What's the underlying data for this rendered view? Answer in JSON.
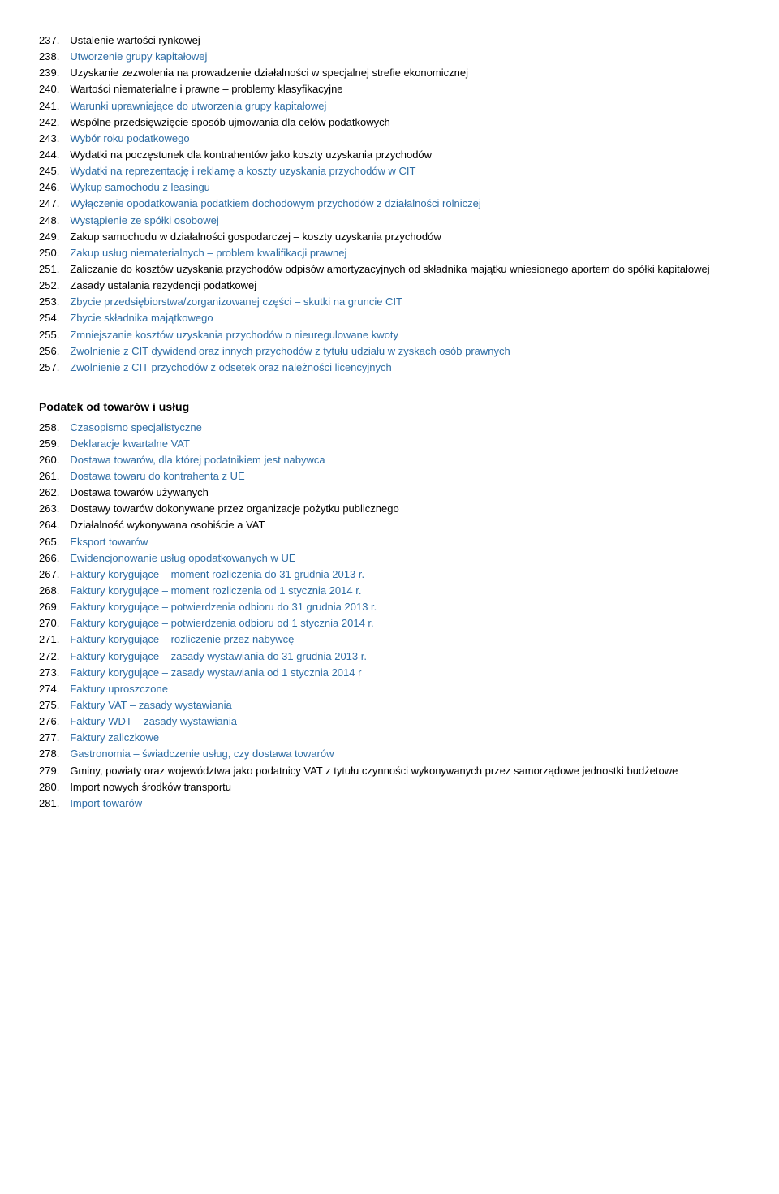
{
  "list1": [
    {
      "n": "237.",
      "t": "Ustalenie wartości rynkowej",
      "c": "black"
    },
    {
      "n": "238.",
      "t": "Utworzenie grupy kapitałowej",
      "c": "blue"
    },
    {
      "n": "239.",
      "t": "Uzyskanie zezwolenia na prowadzenie działalności w specjalnej strefie ekonomicznej",
      "c": "black"
    },
    {
      "n": "240.",
      "t": "Wartości niematerialne i prawne – problemy klasyfikacyjne",
      "c": "black"
    },
    {
      "n": "241.",
      "t": "Warunki uprawniające do utworzenia grupy kapitałowej",
      "c": "blue"
    },
    {
      "n": "242.",
      "t": "Wspólne przedsięwzięcie sposób ujmowania dla celów podatkowych",
      "c": "black"
    },
    {
      "n": "243.",
      "t": "Wybór roku podatkowego",
      "c": "blue"
    },
    {
      "n": "244.",
      "t": "Wydatki na poczęstunek dla kontrahentów jako koszty uzyskania przychodów",
      "c": "black"
    },
    {
      "n": "245.",
      "t": "Wydatki na reprezentację i reklamę a koszty uzyskania przychodów w CIT",
      "c": "blue"
    },
    {
      "n": "246.",
      "t": "Wykup samochodu z leasingu",
      "c": "blue"
    },
    {
      "n": "247.",
      "t": "Wyłączenie opodatkowania podatkiem dochodowym przychodów z działalności rolniczej",
      "c": "blue",
      "sub": true
    },
    {
      "n": "248.",
      "t": "Wystąpienie ze spółki osobowej",
      "c": "blue"
    },
    {
      "n": "249.",
      "t": "Zakup samochodu w działalności gospodarczej – koszty uzyskania przychodów",
      "c": "black"
    },
    {
      "n": "250.",
      "t": "Zakup usług niematerialnych – problem kwalifikacji prawnej",
      "c": "blue"
    },
    {
      "n": "251.",
      "t": "Zaliczanie do kosztów uzyskania przychodów odpisów amortyzacyjnych od składnika majątku wniesionego aportem do spółki kapitałowej",
      "c": "black",
      "sub": true
    },
    {
      "n": "252.",
      "t": "Zasady ustalania rezydencji podatkowej",
      "c": "black"
    },
    {
      "n": "253.",
      "t": "Zbycie przedsiębiorstwa/zorganizowanej części – skutki na gruncie CIT",
      "c": "blue"
    },
    {
      "n": "254.",
      "t": "Zbycie składnika majątkowego",
      "c": "blue"
    },
    {
      "n": "255.",
      "t": "Zmniejszanie kosztów uzyskania przychodów o nieuregulowane kwoty",
      "c": "blue"
    },
    {
      "n": "256.",
      "t": "Zwolnienie z CIT dywidend  oraz innych przychodów z tytułu udziału w zyskach osób prawnych",
      "c": "blue",
      "sub": true
    },
    {
      "n": "257.",
      "t": "Zwolnienie z CIT przychodów z odsetek oraz należności licencyjnych",
      "c": "blue"
    }
  ],
  "section_title": "Podatek od towarów i usług",
  "list2": [
    {
      "n": "258.",
      "t": "Czasopismo specjalistyczne",
      "c": "blue"
    },
    {
      "n": "259.",
      "t": "Deklaracje kwartalne VAT",
      "c": "blue"
    },
    {
      "n": "260.",
      "t": "Dostawa towarów, dla której podatnikiem jest nabywca",
      "c": "blue"
    },
    {
      "n": "261.",
      "t": "Dostawa towaru do kontrahenta z UE",
      "c": "blue"
    },
    {
      "n": "262.",
      "t": "Dostawa towarów używanych",
      "c": "black"
    },
    {
      "n": "263.",
      "t": "Dostawy towarów dokonywane przez organizacje pożytku publicznego",
      "c": "black"
    },
    {
      "n": "264.",
      "t": "Działalność wykonywana osobiście a VAT",
      "c": "black"
    },
    {
      "n": "265.",
      "t": "Eksport towarów",
      "c": "blue"
    },
    {
      "n": "266.",
      "t": "Ewidencjonowanie usług opodatkowanych w UE",
      "c": "blue"
    },
    {
      "n": "267.",
      "t": "Faktury korygujące – moment rozliczenia do 31 grudnia 2013 r.",
      "c": "blue"
    },
    {
      "n": "268.",
      "t": "Faktury korygujące – moment rozliczenia od 1 stycznia 2014 r.",
      "c": "blue"
    },
    {
      "n": "269.",
      "t": "Faktury korygujące – potwierdzenia odbioru do 31 grudnia 2013 r.",
      "c": "blue"
    },
    {
      "n": "270.",
      "t": "Faktury korygujące – potwierdzenia odbioru od 1 stycznia 2014 r.",
      "c": "blue"
    },
    {
      "n": "271.",
      "t": "Faktury korygujące – rozliczenie przez nabywcę",
      "c": "blue"
    },
    {
      "n": "272.",
      "t": "Faktury korygujące – zasady wystawiania do 31 grudnia 2013 r.",
      "c": "blue"
    },
    {
      "n": "273.",
      "t": "Faktury korygujące – zasady wystawiania od 1 stycznia 2014 r",
      "c": "blue"
    },
    {
      "n": "274.",
      "t": "Faktury uproszczone",
      "c": "blue"
    },
    {
      "n": "275.",
      "t": "Faktury VAT – zasady wystawiania",
      "c": "blue"
    },
    {
      "n": "276.",
      "t": "Faktury WDT – zasady wystawiania",
      "c": "blue"
    },
    {
      "n": "277.",
      "t": "Faktury zaliczkowe",
      "c": "blue"
    },
    {
      "n": "278.",
      "t": "Gastronomia – świadczenie usług, czy dostawa towarów",
      "c": "blue"
    },
    {
      "n": "279.",
      "t": "Gminy, powiaty oraz województwa jako podatnicy VAT z tytułu czynności wykonywanych przez samorządowe jednostki budżetowe",
      "c": "black",
      "sub": true
    },
    {
      "n": "280.",
      "t": "Import nowych środków transportu",
      "c": "black"
    },
    {
      "n": "281.",
      "t": "Import towarów",
      "c": "blue"
    }
  ]
}
